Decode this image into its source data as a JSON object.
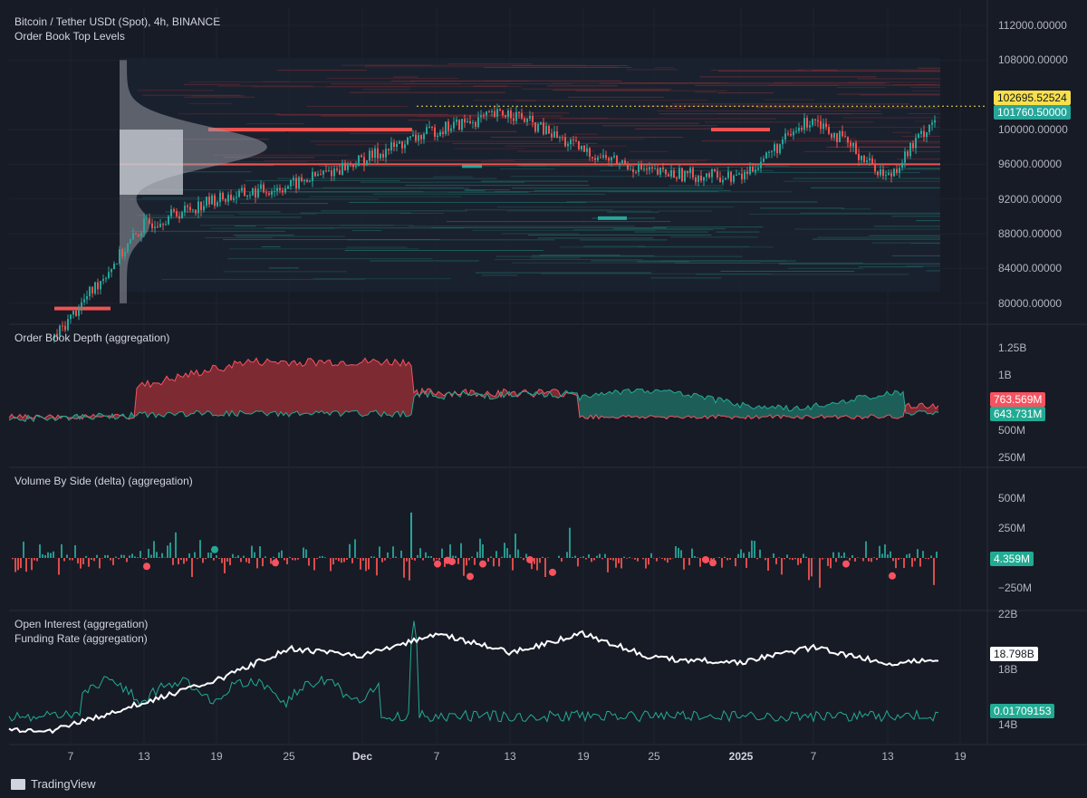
{
  "header": {
    "symbol": "Bitcoin / Tether USDt (Spot), 4h, BINANCE",
    "indicator": "Order Book Top Levels"
  },
  "panes": {
    "price": {
      "ticks": [
        "112000.00000",
        "108000.00000",
        "100000.00000",
        "96000.00000",
        "92000.00000",
        "88000.00000",
        "84000.00000",
        "80000.00000"
      ],
      "tick_values": [
        112000,
        108000,
        100000,
        96000,
        92000,
        88000,
        84000,
        80000
      ],
      "last_price": "102695.52524",
      "last_price_value": 102695.52524,
      "marker_price": "101760.50000",
      "marker_value": 101760.5,
      "badge_colors": {
        "last": "#f7e04b",
        "marker": "#26a69a"
      }
    },
    "depth": {
      "title": "Order Book Depth (aggregation)",
      "ticks": [
        "1.25B",
        "1B",
        "500M",
        "250M"
      ],
      "tick_values": [
        1.25,
        1.0,
        0.5,
        0.25
      ],
      "bid_badge": "763.569M",
      "bid_value": 0.763569,
      "ask_badge": "643.731M",
      "ask_value": 0.643731,
      "colors": {
        "bid": "#f7525f",
        "ask": "#22ab94"
      }
    },
    "volume": {
      "title": "Volume By Side (delta) (aggregation)",
      "ticks": [
        "500M",
        "250M",
        "−250M"
      ],
      "tick_values": [
        500,
        250,
        -250
      ],
      "badge": "4.359M",
      "badge_value": 4.359
    },
    "oi": {
      "title1": "Open Interest (aggregation)",
      "title2": "Funding Rate (aggregation)",
      "ticks": [
        "22B",
        "18B",
        "14B"
      ],
      "tick_values": [
        22,
        18,
        14
      ],
      "oi_badge": "18.798B",
      "oi_value": 18.798,
      "funding_badge": "0.01709153",
      "funding_value": 0.01709153
    }
  },
  "xaxis": {
    "labels": [
      "7",
      "13",
      "19",
      "25",
      "Dec",
      "7",
      "13",
      "19",
      "25",
      "2025",
      "7",
      "13",
      "19"
    ],
    "bold_indices": [
      4,
      9
    ]
  },
  "footer": {
    "brand": "TradingView"
  },
  "colors": {
    "up": "#26a69a",
    "down": "#ef5350",
    "bg": "#171b26",
    "grid": "#232735"
  },
  "chart_data": {
    "type": "line",
    "x": [
      "Nov 7",
      "Nov 13",
      "Nov 19",
      "Nov 25",
      "Dec 1",
      "Dec 7",
      "Dec 13",
      "Dec 19",
      "Dec 25",
      "Jan 1",
      "Jan 7",
      "Jan 13",
      "Jan 17"
    ],
    "series": [
      {
        "values": [
          76000,
          89000,
          92000,
          93500,
          96500,
          100000,
          102000,
          97500,
          95000,
          94500,
          101500,
          94500,
          101760
        ]
      }
    ],
    "ylim": [
      78000,
      112000
    ]
  }
}
